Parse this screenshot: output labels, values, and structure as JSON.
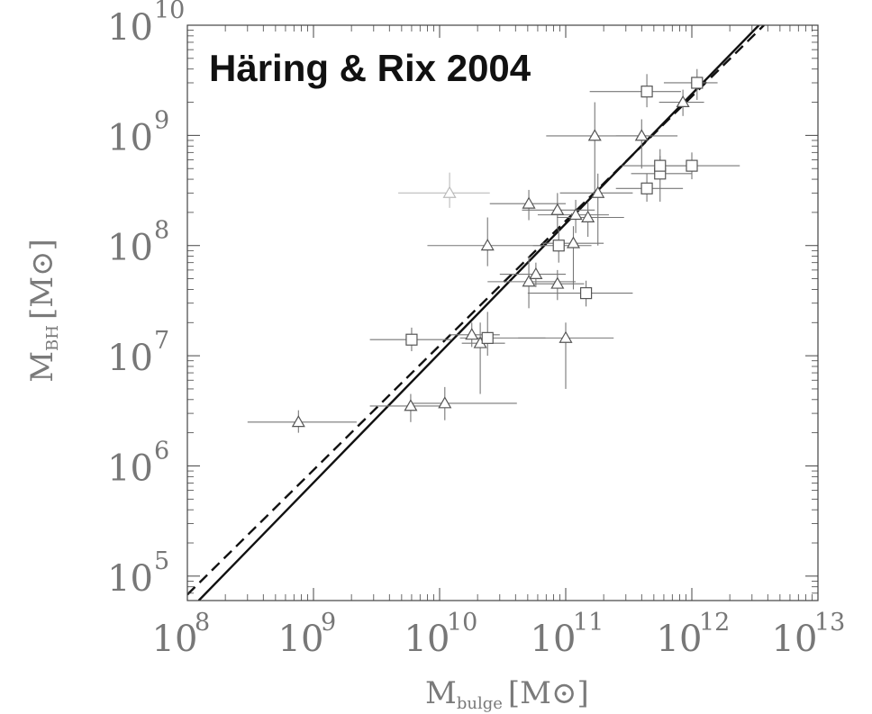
{
  "chart_data": {
    "type": "scatter",
    "title": "Häring & Rix 2004",
    "xlabel": {
      "main": "M",
      "subscript": "bulge",
      "unit": "[M⊙]"
    },
    "ylabel": {
      "main": "M",
      "subscript": "BH",
      "unit": "[M⊙]"
    },
    "x_scale": "log",
    "y_scale": "log",
    "xlim": [
      100000000.0,
      10000000000000.0
    ],
    "ylim": [
      60000.0,
      10000000000.0
    ],
    "x_ticks": [
      {
        "base": "10",
        "exp": "8",
        "value": 100000000.0
      },
      {
        "base": "10",
        "exp": "9",
        "value": 1000000000.0
      },
      {
        "base": "10",
        "exp": "10",
        "value": 10000000000.0
      },
      {
        "base": "10",
        "exp": "11",
        "value": 100000000000.0
      },
      {
        "base": "10",
        "exp": "12",
        "value": 1000000000000.0
      },
      {
        "base": "10",
        "exp": "13",
        "value": 10000000000000.0
      }
    ],
    "y_ticks": [
      {
        "base": "10",
        "exp": "5",
        "value": 100000.0
      },
      {
        "base": "10",
        "exp": "6",
        "value": 1000000.0
      },
      {
        "base": "10",
        "exp": "7",
        "value": 10000000.0
      },
      {
        "base": "10",
        "exp": "8",
        "value": 100000000.0
      },
      {
        "base": "10",
        "exp": "9",
        "value": 1000000000.0
      },
      {
        "base": "10",
        "exp": "10",
        "value": 10000000000.0
      }
    ],
    "grid": false,
    "legend": "none",
    "colors": {
      "markers": "#555555",
      "errorbars": "#777777",
      "faded": "#bbbbbb",
      "fit": "#111111"
    },
    "series": [
      {
        "marker": "triangle",
        "points": [
          {
            "x": 760000000.0,
            "y": 2500000.0,
            "xlo": 300000000.0,
            "xhi": 2200000000.0,
            "ylo": 2000000.0,
            "yhi": 3200000.0
          },
          {
            "x": 5900000000.0,
            "y": 3500000.0,
            "xlo": 2800000000.0,
            "xhi": 11000000000.0,
            "ylo": 2500000.0,
            "yhi": 4500000.0
          },
          {
            "x": 11000000000.0,
            "y": 3700000.0,
            "xlo": 6000000000.0,
            "xhi": 41000000000.0,
            "ylo": 2600000.0,
            "yhi": 5200000.0
          },
          {
            "x": 18000000000.0,
            "y": 15500000.0,
            "xlo": 12000000000.0,
            "xhi": 30000000000.0,
            "ylo": 12000000.0,
            "yhi": 20000000.0
          },
          {
            "x": 21000000000.0,
            "y": 13000000.0,
            "xlo": 15000000000.0,
            "xhi": 33000000000.0,
            "ylo": 4500000.0,
            "yhi": 20000000.0
          },
          {
            "x": 100000000000.0,
            "y": 14500000.0,
            "xlo": 42000000000.0,
            "xhi": 240000000000.0,
            "ylo": 5000000.0,
            "yhi": 20000000.0
          },
          {
            "x": 24000000000.0,
            "y": 100000000.0,
            "xlo": 8000000000.0,
            "xhi": 69000000000.0,
            "ylo": 65000000.0,
            "yhi": 180000000.0
          },
          {
            "x": 51000000000.0,
            "y": 47000000.0,
            "xlo": 24000000000.0,
            "xhi": 120000000000.0,
            "ylo": 27000000.0,
            "yhi": 80000000.0
          },
          {
            "x": 58000000000.0,
            "y": 55000000.0,
            "xlo": 30000000000.0,
            "xhi": 100000000000.0,
            "ylo": 42000000.0,
            "yhi": 70000000.0
          },
          {
            "x": 86000000000.0,
            "y": 45000000.0,
            "xlo": 50000000000.0,
            "xhi": 140000000000.0,
            "ylo": 32000000.0,
            "yhi": 60000000.0
          },
          {
            "x": 51000000000.0,
            "y": 240000000.0,
            "xlo": 25000000000.0,
            "xhi": 100000000000.0,
            "ylo": 170000000.0,
            "yhi": 320000000.0
          },
          {
            "x": 86000000000.0,
            "y": 210000000.0,
            "xlo": 45000000000.0,
            "xhi": 170000000000.0,
            "ylo": 140000000.0,
            "yhi": 300000000.0
          },
          {
            "x": 120000000000.0,
            "y": 190000000.0,
            "xlo": 60000000000.0,
            "xhi": 220000000000.0,
            "ylo": 130000000.0,
            "yhi": 260000000.0
          },
          {
            "x": 150000000000.0,
            "y": 180000000.0,
            "xlo": 85000000000.0,
            "xhi": 290000000000.0,
            "ylo": 120000000.0,
            "yhi": 250000000.0
          },
          {
            "x": 180000000000.0,
            "y": 300000000.0,
            "xlo": 90000000000.0,
            "xhi": 340000000000.0,
            "ylo": 100000000.0,
            "yhi": 450000000.0
          },
          {
            "x": 115000000000.0,
            "y": 105000000.0,
            "xlo": 65000000000.0,
            "xhi": 200000000000.0,
            "ylo": 40000000.0,
            "yhi": 150000000.0
          },
          {
            "x": 170000000000.0,
            "y": 990000000.0,
            "xlo": 70000000000.0,
            "xhi": 450000000000.0,
            "ylo": 300000000.0,
            "yhi": 2000000000.0
          },
          {
            "x": 400000000000.0,
            "y": 990000000.0,
            "xlo": 250000000000.0,
            "xhi": 770000000000.0,
            "ylo": 500000000.0,
            "yhi": 1400000000.0
          },
          {
            "x": 850000000000.0,
            "y": 2000000000.0,
            "xlo": 550000000000.0,
            "xhi": 1250000000000.0,
            "ylo": 1500000000.0,
            "yhi": 2600000000.0
          },
          {
            "x": 12000000000.0,
            "y": 300000000.0,
            "xlo": 4700000000.0,
            "xhi": 25000000000.0,
            "ylo": 220000000.0,
            "yhi": 460000000.0,
            "faded": true
          }
        ]
      },
      {
        "marker": "square",
        "points": [
          {
            "x": 6000000000.0,
            "y": 14000000.0,
            "xlo": 2800000000.0,
            "xhi": 12500000000.0,
            "ylo": 11000000.0,
            "yhi": 18000000.0
          },
          {
            "x": 24000000000.0,
            "y": 14500000.0,
            "xlo": 14500000000.0,
            "xhi": 69000000000.0,
            "ylo": 10000000.0,
            "yhi": 25000000.0
          },
          {
            "x": 145000000000.0,
            "y": 37000000.0,
            "xlo": 50000000000.0,
            "xhi": 340000000000.0,
            "ylo": 28000000.0,
            "yhi": 48000000.0
          },
          {
            "x": 88000000000.0,
            "y": 100000000.0,
            "xlo": 55000000000.0,
            "xhi": 160000000000.0,
            "ylo": 70000000.0,
            "yhi": 140000000.0
          },
          {
            "x": 440000000000.0,
            "y": 330000000.0,
            "xlo": 250000000000.0,
            "xhi": 850000000000.0,
            "ylo": 250000000.0,
            "yhi": 450000000.0
          },
          {
            "x": 560000000000.0,
            "y": 450000000.0,
            "xlo": 330000000000.0,
            "xhi": 1000000000000.0,
            "ylo": 250000000.0,
            "yhi": 650000000.0
          },
          {
            "x": 560000000000.0,
            "y": 530000000.0,
            "xlo": 280000000000.0,
            "xhi": 1000000000000.0,
            "ylo": 400000000.0,
            "yhi": 750000000.0
          },
          {
            "x": 1000000000000.0,
            "y": 530000000.0,
            "xlo": 600000000000.0,
            "xhi": 2400000000000.0,
            "ylo": 400000000.0,
            "yhi": 700000000.0
          },
          {
            "x": 440000000000.0,
            "y": 2500000000.0,
            "xlo": 155000000000.0,
            "xhi": 820000000000.0,
            "ylo": 1800000000.0,
            "yhi": 3600000000.0
          },
          {
            "x": 1100000000000.0,
            "y": 3000000000.0,
            "xlo": 600000000000.0,
            "xhi": 1600000000000.0,
            "ylo": 2100000000.0,
            "yhi": 4000000000.0
          }
        ]
      }
    ],
    "fit_lines": [
      {
        "style": "solid",
        "p1": {
          "x": 123000000.0,
          "y": 60000.0
        },
        "p2": {
          "x": 3400000000000.0,
          "y": 10000000000.0
        }
      },
      {
        "style": "dashed",
        "p1": {
          "x": 100000000.0,
          "y": 68000.0
        },
        "p2": {
          "x": 3730000000000.0,
          "y": 10000000000.0
        }
      }
    ]
  }
}
